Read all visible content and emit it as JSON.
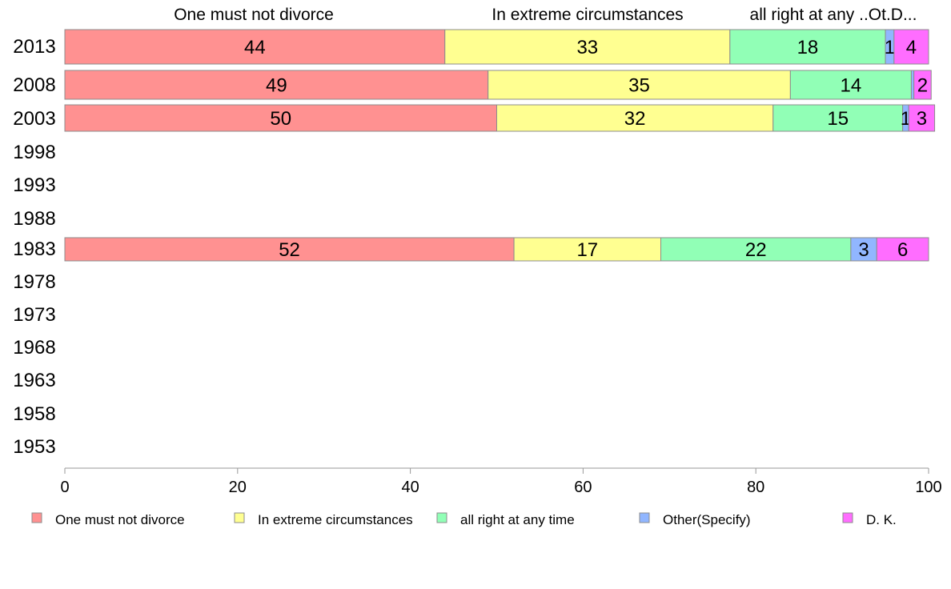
{
  "chart_data": {
    "type": "bar",
    "orientation": "horizontal",
    "stacked": true,
    "categories": [
      "2013",
      "2008",
      "2003",
      "1998",
      "1993",
      "1988",
      "1983",
      "1978",
      "1973",
      "1968",
      "1963",
      "1958",
      "1953"
    ],
    "series": [
      {
        "name": "One must not divorce",
        "color": "#ff9191",
        "values": [
          44,
          49,
          50,
          null,
          null,
          null,
          52,
          null,
          null,
          null,
          null,
          null,
          null
        ]
      },
      {
        "name": "In extreme circumstances",
        "color": "#ffff91",
        "values": [
          33,
          35,
          32,
          null,
          null,
          null,
          17,
          null,
          null,
          null,
          null,
          null,
          null
        ]
      },
      {
        "name": "all right at any time",
        "color": "#91ffb6",
        "values": [
          18,
          14,
          15,
          null,
          null,
          null,
          22,
          null,
          null,
          null,
          null,
          null,
          null
        ]
      },
      {
        "name": "Other(Specify)",
        "color": "#91b6ff",
        "values": [
          1,
          0.3,
          0.7,
          null,
          null,
          null,
          3,
          null,
          null,
          null,
          null,
          null,
          null
        ]
      },
      {
        "name": "D. K.",
        "color": "#ff6dff",
        "values": [
          4,
          2,
          3,
          null,
          null,
          null,
          6,
          null,
          null,
          null,
          null,
          null,
          null
        ]
      }
    ],
    "data_labels": [
      [
        "44",
        "33",
        "18",
        "1",
        "4"
      ],
      [
        "49",
        "35",
        "14",
        "",
        "2"
      ],
      [
        "50",
        "32",
        "15",
        "1",
        "3"
      ],
      null,
      null,
      null,
      [
        "52",
        "17",
        "22",
        "3",
        "6"
      ],
      null,
      null,
      null,
      null,
      null,
      null
    ],
    "top_labels": [
      "One must not divorce",
      "In extreme circumstances",
      "all right at any ..Ot.D..."
    ],
    "xticks": [
      "0",
      "20",
      "40",
      "60",
      "80",
      "100"
    ],
    "xlim": [
      0,
      100
    ],
    "legend_position": "bottom",
    "grid": false
  }
}
